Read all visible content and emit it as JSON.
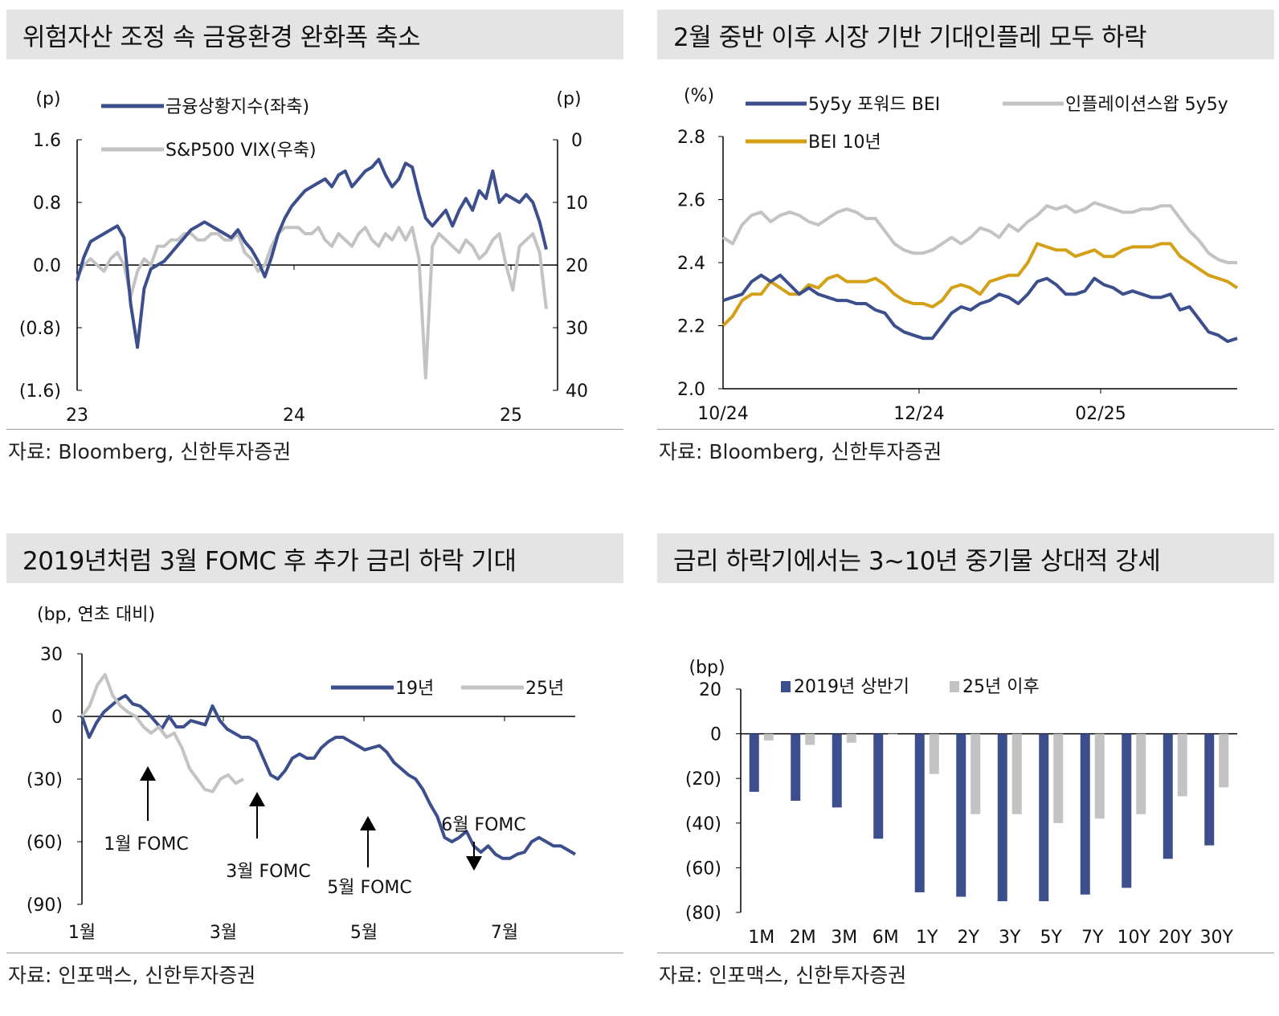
{
  "panels": {
    "p1": {
      "title": "위험자산 조정 속 금융환경 완화폭 축소",
      "source": "자료: Bloomberg, 신한투자증권"
    },
    "p2": {
      "title": "2월 중반 이후 시장 기반 기대인플레 모두 하락",
      "source": "자료: Bloomberg, 신한투자증권"
    },
    "p3": {
      "title": "2019년처럼 3월 FOMC 후 추가 금리 하락 기대",
      "source": "자료: 인포맥스, 신한투자증권"
    },
    "p4": {
      "title": "금리 하락기에서는 3~10년 중기물 상대적 강세",
      "source": "자료: 인포맥스, 신한투자증권"
    }
  },
  "colors": {
    "navy": "#3c4f8c",
    "gray": "#c3c3c3",
    "gold": "#d4a017"
  },
  "chart_data": [
    {
      "type": "line",
      "x_labels": [
        "23",
        "24",
        "25"
      ],
      "left_unit": "(p)",
      "right_unit": "(p)",
      "left_ticks": [
        "1.6",
        "0.8",
        "0.0",
        "(0.8)",
        "(1.6)"
      ],
      "right_ticks": [
        "0",
        "10",
        "20",
        "30",
        "40"
      ],
      "ylim": [
        -1.6,
        1.6
      ],
      "ylim_right": [
        40,
        0
      ],
      "series": [
        {
          "name": "금융상황지수(좌축)",
          "axis": "left",
          "values": [
            -0.2,
            0.1,
            0.3,
            0.35,
            0.4,
            0.45,
            0.5,
            0.35,
            -0.5,
            -1.05,
            -0.3,
            -0.05,
            0.0,
            0.05,
            0.15,
            0.25,
            0.35,
            0.45,
            0.5,
            0.55,
            0.5,
            0.45,
            0.4,
            0.35,
            0.45,
            0.3,
            0.2,
            0.05,
            -0.15,
            0.1,
            0.4,
            0.6,
            0.75,
            0.85,
            0.95,
            1.0,
            1.05,
            1.1,
            1.0,
            1.15,
            1.2,
            1.0,
            1.1,
            1.2,
            1.25,
            1.35,
            1.15,
            1.0,
            1.1,
            1.3,
            1.25,
            0.9,
            0.6,
            0.5,
            0.6,
            0.7,
            0.5,
            0.7,
            0.85,
            0.7,
            0.95,
            0.85,
            1.2,
            0.8,
            0.9,
            0.85,
            0.8,
            0.9,
            0.8,
            0.55,
            0.2
          ]
        },
        {
          "name": "S&P500 VIX(우축)",
          "axis": "right",
          "values": [
            22,
            20,
            19,
            20,
            21,
            19,
            18,
            20,
            25,
            21,
            19,
            20,
            17,
            17,
            16,
            16,
            15,
            15,
            16,
            16,
            15,
            15,
            16,
            16,
            15,
            18,
            19,
            21,
            20,
            17,
            15,
            14,
            14,
            14,
            15,
            15,
            14,
            16,
            17,
            15,
            16,
            17,
            15,
            14,
            16,
            17,
            15,
            16,
            14,
            16,
            14,
            19,
            38,
            17,
            15,
            16,
            17,
            18,
            16,
            17,
            19,
            18,
            16,
            15,
            20,
            24,
            17,
            16,
            15,
            18,
            27
          ]
        }
      ]
    },
    {
      "type": "line",
      "x_labels": [
        "10/24",
        "12/24",
        "02/25"
      ],
      "y_unit": "(%)",
      "y_ticks": [
        "2.8",
        "2.6",
        "2.4",
        "2.2",
        "2.0"
      ],
      "ylim": [
        2.0,
        2.8
      ],
      "series": [
        {
          "name": "5y5y 포워드 BEI",
          "values": [
            2.28,
            2.29,
            2.3,
            2.34,
            2.36,
            2.34,
            2.36,
            2.33,
            2.3,
            2.32,
            2.3,
            2.29,
            2.28,
            2.28,
            2.27,
            2.27,
            2.25,
            2.24,
            2.2,
            2.18,
            2.17,
            2.16,
            2.16,
            2.2,
            2.24,
            2.26,
            2.25,
            2.27,
            2.28,
            2.3,
            2.29,
            2.27,
            2.3,
            2.34,
            2.35,
            2.33,
            2.3,
            2.3,
            2.31,
            2.35,
            2.33,
            2.32,
            2.3,
            2.31,
            2.3,
            2.29,
            2.29,
            2.3,
            2.25,
            2.26,
            2.22,
            2.18,
            2.17,
            2.15,
            2.16
          ]
        },
        {
          "name": "인플레이션스왑 5y5y",
          "values": [
            2.48,
            2.46,
            2.52,
            2.55,
            2.56,
            2.53,
            2.55,
            2.56,
            2.55,
            2.53,
            2.52,
            2.54,
            2.56,
            2.57,
            2.56,
            2.54,
            2.54,
            2.5,
            2.46,
            2.44,
            2.43,
            2.43,
            2.44,
            2.46,
            2.48,
            2.46,
            2.48,
            2.51,
            2.5,
            2.48,
            2.52,
            2.5,
            2.53,
            2.55,
            2.58,
            2.57,
            2.58,
            2.56,
            2.57,
            2.59,
            2.58,
            2.57,
            2.56,
            2.56,
            2.57,
            2.57,
            2.58,
            2.58,
            2.54,
            2.5,
            2.47,
            2.43,
            2.41,
            2.4,
            2.4
          ]
        },
        {
          "name": "BEI 10년",
          "values": [
            2.2,
            2.23,
            2.28,
            2.3,
            2.3,
            2.34,
            2.32,
            2.3,
            2.3,
            2.33,
            2.32,
            2.35,
            2.36,
            2.34,
            2.34,
            2.34,
            2.35,
            2.33,
            2.3,
            2.28,
            2.27,
            2.27,
            2.26,
            2.28,
            2.32,
            2.33,
            2.32,
            2.3,
            2.34,
            2.35,
            2.36,
            2.36,
            2.4,
            2.46,
            2.45,
            2.44,
            2.44,
            2.42,
            2.43,
            2.44,
            2.42,
            2.42,
            2.44,
            2.45,
            2.45,
            2.45,
            2.46,
            2.46,
            2.42,
            2.4,
            2.38,
            2.36,
            2.35,
            2.34,
            2.32
          ]
        }
      ]
    },
    {
      "type": "line",
      "x_labels": [
        "1월",
        "3월",
        "5월",
        "7월"
      ],
      "y_unit": "(bp, 연초 대비)",
      "y_ticks": [
        "30",
        "0",
        "(30)",
        "(60)",
        "(90)"
      ],
      "ylim": [
        -90,
        30
      ],
      "annotations": [
        "1월 FOMC",
        "3월 FOMC",
        "5월 FOMC",
        "6월 FOMC"
      ],
      "series": [
        {
          "name": "19년",
          "values": [
            0,
            -10,
            -3,
            2,
            5,
            8,
            10,
            6,
            5,
            2,
            -2,
            -6,
            0,
            -5,
            -5,
            -2,
            -3,
            -4,
            5,
            -2,
            -6,
            -8,
            -10,
            -10,
            -12,
            -20,
            -28,
            -30,
            -26,
            -20,
            -18,
            -20,
            -20,
            -15,
            -12,
            -10,
            -10,
            -12,
            -14,
            -16,
            -15,
            -14,
            -17,
            -22,
            -25,
            -28,
            -30,
            -35,
            -42,
            -48,
            -58,
            -60,
            -58,
            -55,
            -62,
            -65,
            -62,
            -66,
            -68,
            -68,
            -66,
            -65,
            -60,
            -58,
            -60,
            -62,
            -62,
            -64,
            -66
          ]
        },
        {
          "name": "25년",
          "values": [
            0,
            5,
            15,
            20,
            10,
            5,
            2,
            0,
            -5,
            -8,
            -5,
            -10,
            -8,
            -15,
            -25,
            -30,
            -35,
            -36,
            -30,
            -28,
            -32,
            -30
          ]
        }
      ]
    },
    {
      "type": "bar",
      "y_unit": "(bp)",
      "y_ticks": [
        "20",
        "0",
        "(20)",
        "(40)",
        "(60)",
        "(80)"
      ],
      "ylim": [
        -80,
        20
      ],
      "categories": [
        "1M",
        "2M",
        "3M",
        "6M",
        "1Y",
        "2Y",
        "3Y",
        "5Y",
        "7Y",
        "10Y",
        "20Y",
        "30Y"
      ],
      "series": [
        {
          "name": "2019년 상반기",
          "values": [
            -26,
            -30,
            -33,
            -47,
            -71,
            -73,
            -75,
            -75,
            -72,
            -69,
            -56,
            -50
          ]
        },
        {
          "name": "25년 이후",
          "values": [
            -3,
            -5,
            -4,
            0,
            -18,
            -36,
            -36,
            -40,
            -38,
            -36,
            -28,
            -24
          ]
        }
      ]
    }
  ]
}
